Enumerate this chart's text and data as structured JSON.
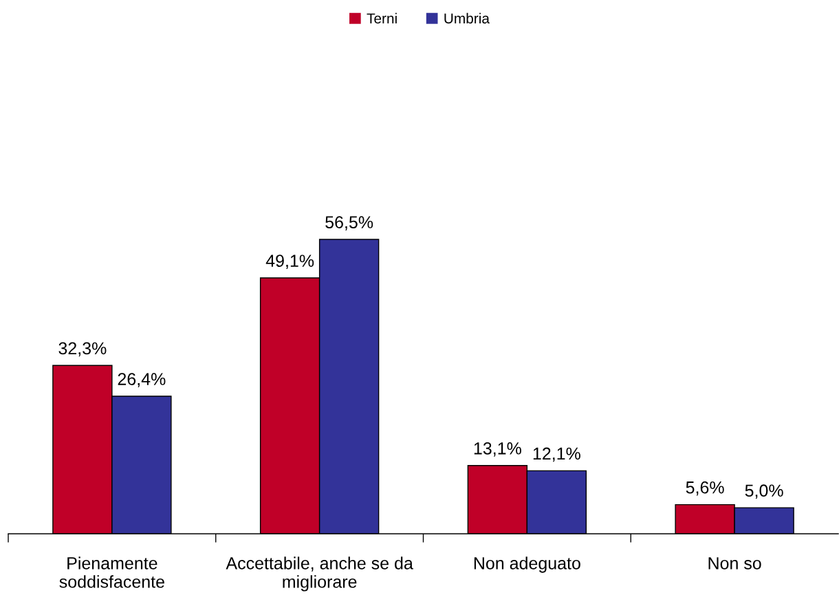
{
  "chart_data": {
    "type": "bar",
    "categories": [
      "Pienamente\nsoddisfacente",
      "Accettabile, anche se da\nmigliorare",
      "Non adeguato",
      "Non so"
    ],
    "series": [
      {
        "name": "Terni",
        "color": "#c00028",
        "values": [
          32.3,
          49.1,
          13.1,
          5.6
        ],
        "value_labels": [
          "32,3%",
          "49,1%",
          "13,1%",
          "5,6%"
        ]
      },
      {
        "name": "Umbria",
        "color": "#333399",
        "values": [
          26.4,
          56.5,
          12.1,
          5.0
        ],
        "value_labels": [
          "26,4%",
          "56,5%",
          "12,1%",
          "5,0%"
        ]
      }
    ],
    "legend": "top",
    "grid": false
  }
}
